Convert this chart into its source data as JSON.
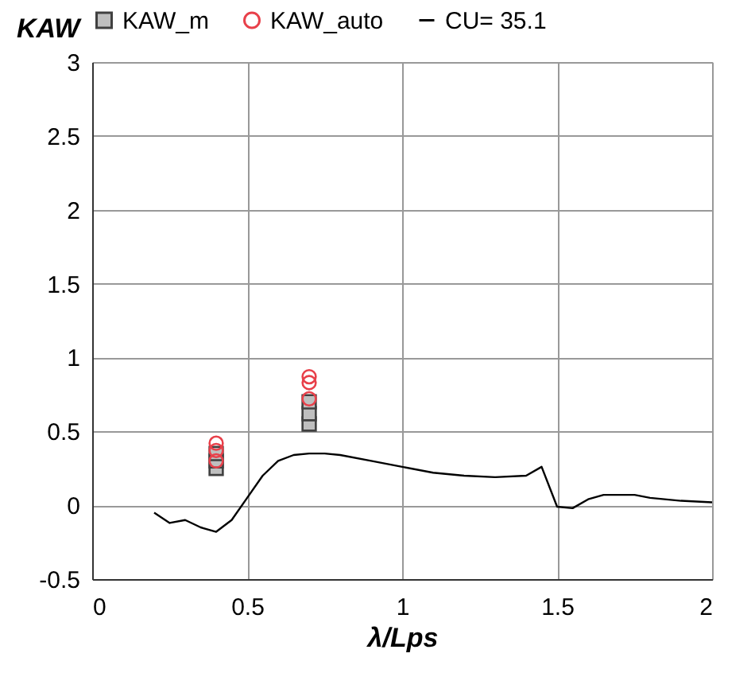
{
  "chart_data": {
    "type": "scatter",
    "xlabel": "λ/Lps",
    "ylabel": "KAW",
    "xlim": [
      0,
      2
    ],
    "xticks": [
      0,
      0.5,
      1,
      1.5,
      2
    ],
    "ylim": [
      -0.5,
      3
    ],
    "yticks": [
      -0.5,
      0,
      0.5,
      1,
      1.5,
      2,
      2.5,
      3
    ],
    "grid": true,
    "legend": "top",
    "series": [
      {
        "name": "KAW_m",
        "marker": "square",
        "color": "#bfbfbf",
        "x": [
          0.4,
          0.4,
          0.4,
          0.7,
          0.7,
          0.7
        ],
        "values": [
          0.25,
          0.3,
          0.35,
          0.55,
          0.62,
          0.7
        ]
      },
      {
        "name": "KAW_auto",
        "marker": "circle",
        "color": "#e8404a",
        "x": [
          0.4,
          0.4,
          0.4,
          0.7,
          0.7,
          0.7
        ],
        "values": [
          0.3,
          0.37,
          0.42,
          0.72,
          0.83,
          0.87
        ]
      },
      {
        "name": "CU= 35.1",
        "type": "line",
        "marker": "none",
        "color": "#000000",
        "x": [
          0.2,
          0.25,
          0.3,
          0.35,
          0.4,
          0.45,
          0.5,
          0.55,
          0.6,
          0.65,
          0.7,
          0.75,
          0.8,
          0.9,
          1.0,
          1.1,
          1.2,
          1.3,
          1.4,
          1.45,
          1.5,
          1.55,
          1.6,
          1.65,
          1.75,
          1.8,
          1.9,
          2.0
        ],
        "values": [
          -0.05,
          -0.12,
          -0.1,
          -0.15,
          -0.18,
          -0.1,
          0.05,
          0.2,
          0.3,
          0.34,
          0.35,
          0.35,
          0.34,
          0.3,
          0.26,
          0.22,
          0.2,
          0.19,
          0.2,
          0.26,
          -0.01,
          -0.02,
          0.04,
          0.07,
          0.07,
          0.05,
          0.03,
          0.02
        ]
      }
    ]
  }
}
